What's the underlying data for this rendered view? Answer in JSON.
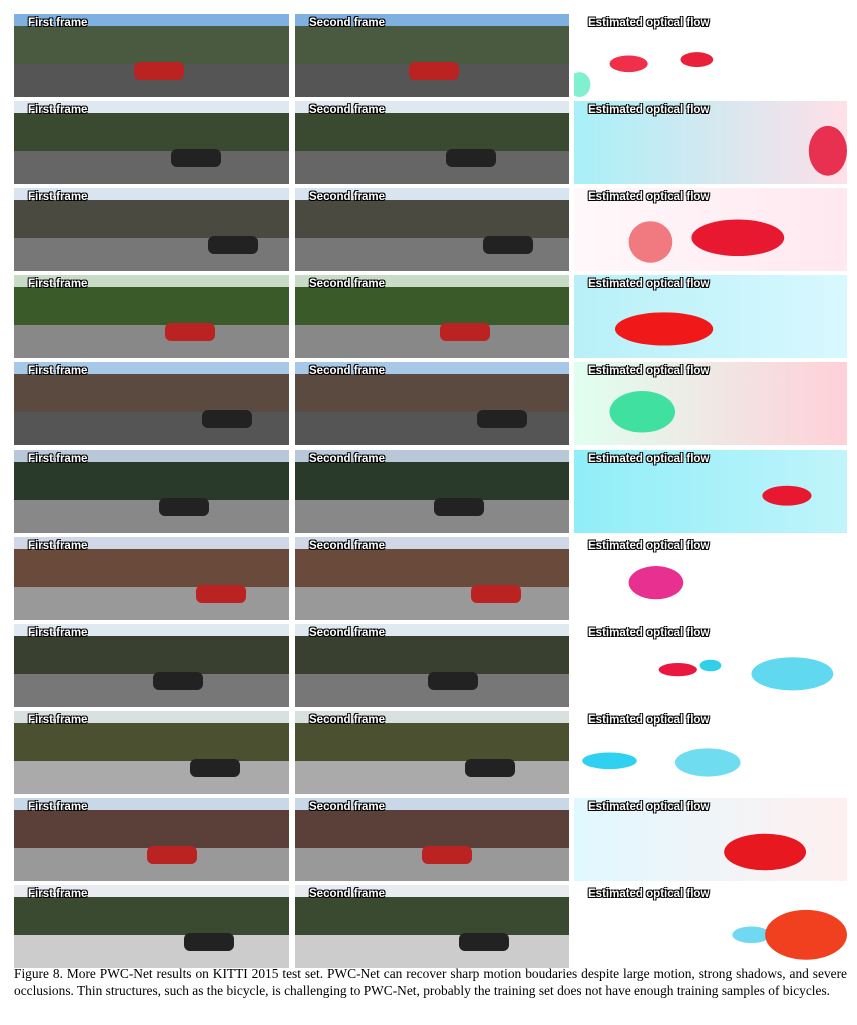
{
  "rows": [
    {
      "first": "First frame",
      "second": "Second frame",
      "flow": "Estimated optical flow"
    },
    {
      "first": "First frame",
      "second": "Second frame",
      "flow": "Estimated optical flow"
    },
    {
      "first": "First frame",
      "second": "Second frame",
      "flow": "Estimated optical flow"
    },
    {
      "first": "First frame",
      "second": "Second frame",
      "flow": "Estimated optical flow"
    },
    {
      "first": "First frame",
      "second": "Second frame",
      "flow": "Estimated optical flow"
    },
    {
      "first": "First frame",
      "second": "Second frame",
      "flow": "Estimated optical flow"
    },
    {
      "first": "First frame",
      "second": "Second frame",
      "flow": "Estimated optical flow"
    },
    {
      "first": "First frame",
      "second": "Second frame",
      "flow": "Estimated optical flow"
    },
    {
      "first": "First frame",
      "second": "Second frame",
      "flow": "Estimated optical flow"
    },
    {
      "first": "First frame",
      "second": "Second frame",
      "flow": "Estimated optical flow"
    },
    {
      "first": "First frame",
      "second": "Second frame",
      "flow": "Estimated optical flow"
    }
  ],
  "caption": "Figure 8. More PWC-Net results on KITTI 2015 test set. PWC-Net can recover sharp motion boudaries despite large motion, strong shadows, and severe occlusions. Thin structures, such as the bicycle, is challenging to PWC-Net, probably the training set does not have enough training samples of bicycles."
}
